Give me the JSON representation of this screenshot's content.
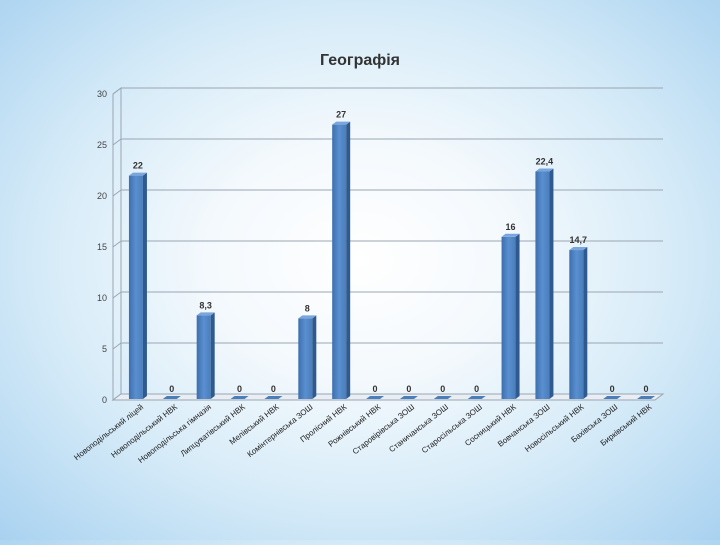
{
  "chart_data": {
    "type": "bar",
    "title": "Географія",
    "xlabel": "",
    "ylabel": "",
    "ylim": [
      0,
      30
    ],
    "yticks": [
      0,
      5,
      10,
      15,
      20,
      25,
      30
    ],
    "grid": true,
    "categories": [
      "Новоподільський ліцей",
      "Новоподільський НВК",
      "Новоподільська гімназія",
      "Липцуватівський НВК",
      "Мелівський НВК",
      "Комінтернівська ЗОШ",
      "Пролісний НВК",
      "Рожнівський НВК",
      "Старовірівська ЗОШ",
      "Станичанська ЗОШ",
      "Старосільська ЗОШ",
      "Сосницький НВК",
      "Вовчанська ЗОШ",
      "Новосільський НВК",
      "Бахівська ЗОШ",
      "Бирківський НВК"
    ],
    "values": [
      22,
      0,
      8.3,
      0,
      0,
      8,
      27,
      0,
      0,
      0,
      0,
      16,
      22.4,
      14.7,
      0,
      0
    ],
    "data_labels": [
      "22",
      "0",
      "8,3",
      "0",
      "0",
      "8",
      "27",
      "0",
      "0",
      "0",
      "0",
      "16",
      "22,4",
      "14,7",
      "0",
      "0"
    ],
    "bar_color": "#4a7ebb"
  }
}
